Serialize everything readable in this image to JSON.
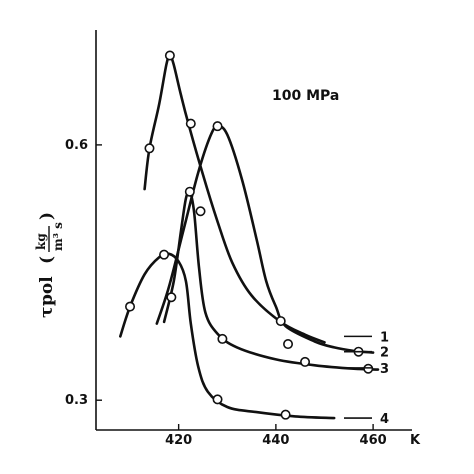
{
  "chart_data": {
    "type": "line",
    "title": "",
    "annotation": "100  MPa",
    "xlabel_unit": "K",
    "ylabel": {
      "symbol": "τ",
      "subscript": "pol",
      "open_paren": "(",
      "numerator": "kg",
      "denominator": "m³ s",
      "close_paren": ")"
    },
    "xlim": [
      403,
      468
    ],
    "ylim": [
      0.265,
      0.735
    ],
    "x_ticks": [
      420,
      440,
      460
    ],
    "x_tick_labels": [
      "420",
      "440",
      "460"
    ],
    "y_ticks": [
      0.3,
      0.6
    ],
    "y_tick_labels": [
      "0.3",
      "0.6"
    ],
    "grid": false,
    "legend": "curve number labels at right end of each curve",
    "series": [
      {
        "name": "1",
        "line": [
          [
            413,
            0.548
          ],
          [
            414,
            0.596
          ],
          [
            416,
            0.648
          ],
          [
            417.5,
            0.695
          ],
          [
            418.2,
            0.705
          ],
          [
            419,
            0.694
          ],
          [
            420.5,
            0.658
          ],
          [
            422,
            0.625
          ],
          [
            425,
            0.565
          ],
          [
            428,
            0.51
          ],
          [
            431,
            0.462
          ],
          [
            435,
            0.423
          ],
          [
            441,
            0.392
          ],
          [
            446,
            0.377
          ],
          [
            450,
            0.368
          ]
        ],
        "points": [
          [
            414,
            0.596
          ],
          [
            418.2,
            0.705
          ],
          [
            422.5,
            0.625
          ],
          [
            441,
            0.393
          ]
        ]
      },
      {
        "name": "2",
        "line": [
          [
            415.5,
            0.39
          ],
          [
            418,
            0.433
          ],
          [
            421,
            0.5
          ],
          [
            424,
            0.567
          ],
          [
            426.5,
            0.61
          ],
          [
            428,
            0.622
          ],
          [
            430,
            0.612
          ],
          [
            433,
            0.56
          ],
          [
            436,
            0.49
          ],
          [
            438,
            0.44
          ],
          [
            440,
            0.41
          ],
          [
            442,
            0.387
          ],
          [
            448,
            0.369
          ],
          [
            452,
            0.362
          ],
          [
            456,
            0.358
          ],
          [
            460,
            0.356
          ]
        ],
        "points": [
          [
            424.5,
            0.522
          ],
          [
            428,
            0.622
          ],
          [
            442.5,
            0.366
          ],
          [
            457,
            0.357
          ]
        ]
      },
      {
        "name": "3",
        "line": [
          [
            417,
            0.392
          ],
          [
            419,
            0.44
          ],
          [
            420.5,
            0.5
          ],
          [
            421.5,
            0.537
          ],
          [
            422.3,
            0.545
          ],
          [
            423.2,
            0.52
          ],
          [
            424.2,
            0.455
          ],
          [
            425.5,
            0.403
          ],
          [
            428,
            0.378
          ],
          [
            432,
            0.362
          ],
          [
            440,
            0.348
          ],
          [
            448,
            0.341
          ],
          [
            456,
            0.337
          ],
          [
            461,
            0.336
          ]
        ],
        "points": [
          [
            418.5,
            0.421
          ],
          [
            422.3,
            0.545
          ],
          [
            429,
            0.372
          ],
          [
            446,
            0.345
          ],
          [
            459,
            0.337
          ]
        ]
      },
      {
        "name": "4",
        "line": [
          [
            408,
            0.375
          ],
          [
            410,
            0.41
          ],
          [
            413,
            0.448
          ],
          [
            416,
            0.468
          ],
          [
            418,
            0.472
          ],
          [
            420,
            0.463
          ],
          [
            421.5,
            0.44
          ],
          [
            422.5,
            0.39
          ],
          [
            424,
            0.34
          ],
          [
            426,
            0.31
          ],
          [
            430,
            0.292
          ],
          [
            436,
            0.286
          ],
          [
            444,
            0.281
          ],
          [
            452,
            0.279
          ]
        ],
        "points": [
          [
            410,
            0.41
          ],
          [
            417,
            0.471
          ],
          [
            428,
            0.301
          ],
          [
            442,
            0.283
          ]
        ]
      }
    ],
    "series_label_leaders": [
      {
        "name": "1",
        "y": 0.375
      },
      {
        "name": "2",
        "y": 0.357
      },
      {
        "name": "3",
        "y": 0.338
      },
      {
        "name": "4",
        "y": 0.279
      }
    ]
  }
}
